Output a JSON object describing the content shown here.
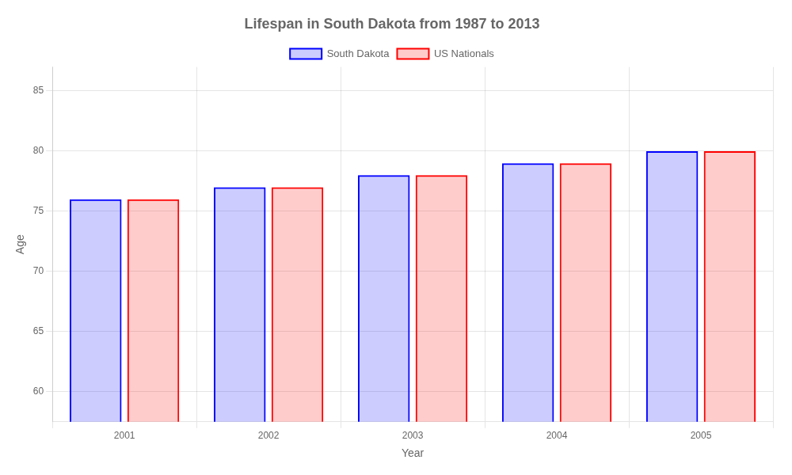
{
  "chart_data": {
    "type": "bar",
    "title": "Lifespan in South Dakota from 1987 to 2013",
    "xlabel": "Year",
    "ylabel": "Age",
    "categories": [
      "2001",
      "2002",
      "2003",
      "2004",
      "2005"
    ],
    "series": [
      {
        "name": "South Dakota",
        "color": "#0000ff",
        "values": [
          76,
          77,
          78,
          79,
          80
        ]
      },
      {
        "name": "US Nationals",
        "color": "#ff0000",
        "values": [
          76,
          77,
          78,
          79,
          80
        ]
      }
    ],
    "ylim": [
      57.5,
      87
    ],
    "yticks": [
      60,
      65,
      70,
      75,
      80,
      85
    ],
    "grid": true,
    "legend": "top"
  }
}
